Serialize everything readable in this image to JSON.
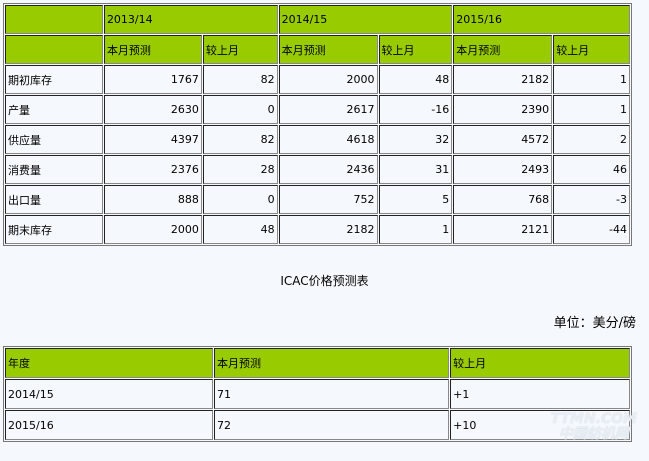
{
  "supply_table": {
    "years": [
      "2013/14",
      "2014/15",
      "2015/16"
    ],
    "subheaders": [
      "本月预测",
      "较上月"
    ],
    "rows": [
      {
        "label": "期初库存",
        "values": [
          "1767",
          "82",
          "2000",
          "48",
          "2182",
          "1"
        ]
      },
      {
        "label": "产量",
        "values": [
          "2630",
          "0",
          "2617",
          "-16",
          "2390",
          "1"
        ]
      },
      {
        "label": "供应量",
        "values": [
          "4397",
          "82",
          "4618",
          "32",
          "4572",
          "2"
        ]
      },
      {
        "label": "消费量",
        "values": [
          "2376",
          "28",
          "2436",
          "31",
          "2493",
          "46"
        ]
      },
      {
        "label": "出口量",
        "values": [
          "888",
          "0",
          "752",
          "5",
          "768",
          "-3"
        ]
      },
      {
        "label": "期末库存",
        "values": [
          "2000",
          "48",
          "2182",
          "1",
          "2121",
          "-44"
        ]
      }
    ]
  },
  "price_title": "ICAC价格预测表",
  "unit": "单位：美分/磅",
  "price_table": {
    "headers": [
      "年度",
      "本月预测",
      "较上月"
    ],
    "rows": [
      [
        "2014/15",
        "71",
        "+1"
      ],
      [
        "2015/16",
        "72",
        "+10"
      ]
    ]
  },
  "watermark": [
    "TTMN.COM",
    "中国纺机网"
  ],
  "colors": {
    "header_green": "#99cc00",
    "background": "#f5f9fd"
  }
}
